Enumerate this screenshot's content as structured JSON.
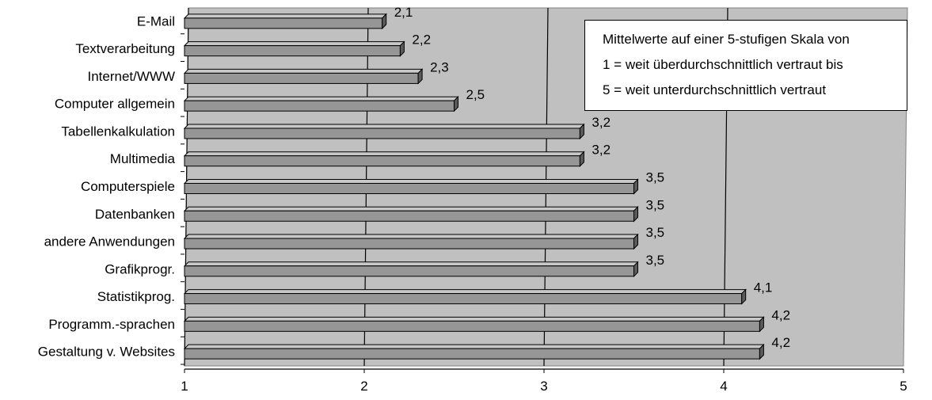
{
  "chart_data": {
    "type": "bar",
    "orientation": "horizontal",
    "categories": [
      "E-Mail",
      "Textverarbeitung",
      "Internet/WWW",
      "Computer allgemein",
      "Tabellenkalkulation",
      "Multimedia",
      "Computerspiele",
      "Datenbanken",
      "andere Anwendungen",
      "Grafikprogr.",
      "Statistikprog.",
      "Programm.-sprachen",
      "Gestaltung v. Websites"
    ],
    "values": [
      2.1,
      2.2,
      2.3,
      2.5,
      3.2,
      3.2,
      3.5,
      3.5,
      3.5,
      3.5,
      4.1,
      4.2,
      4.2
    ],
    "data_labels": [
      "2,1",
      "2,2",
      "2,3",
      "2,5",
      "3,2",
      "3,2",
      "3,5",
      "3,5",
      "3,5",
      "3,5",
      "4,1",
      "4,2",
      "4,2"
    ],
    "x_ticks": [
      "1",
      "2",
      "3",
      "4",
      "5"
    ],
    "xlim": [
      1,
      5
    ],
    "grid": "vertical",
    "plot_background": "#c0c0c0",
    "bar_color": "#969696",
    "note_lines": [
      "Mittelwerte auf einer 5-stufigen Skala von",
      "1 = weit überdurchschnittlich vertraut bis",
      "5 = weit unterdurchschnittlich vertraut"
    ],
    "note_placement": "top-right"
  }
}
